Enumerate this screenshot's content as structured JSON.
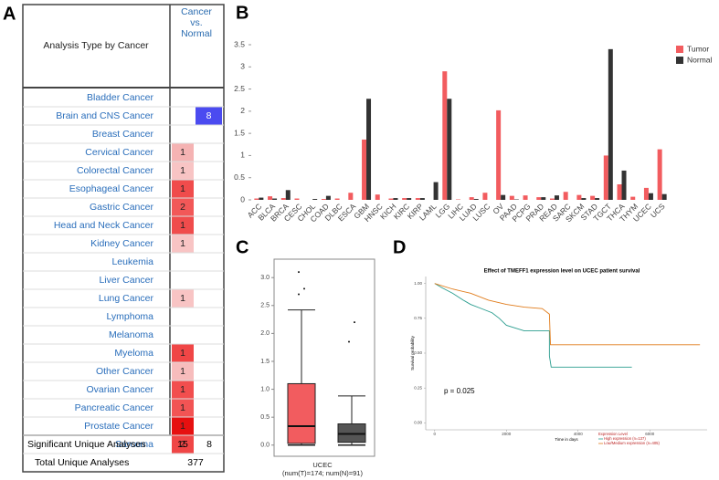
{
  "panel_a": {
    "label": "A",
    "header": {
      "analysis": "Analysis Type by Cancer",
      "comparison": [
        "Cancer",
        "vs.",
        "Normal"
      ]
    },
    "rows": [
      {
        "name": "Bladder Cancer",
        "up": null,
        "down": null
      },
      {
        "name": "Brain and CNS Cancer",
        "up": null,
        "down": {
          "value": 8,
          "color": "#4b4bf0"
        }
      },
      {
        "name": "Breast Cancer",
        "up": null,
        "down": null
      },
      {
        "name": "Cervical Cancer",
        "up": {
          "value": 1,
          "color": "#f5b3b3"
        },
        "down": null
      },
      {
        "name": "Colorectal Cancer",
        "up": {
          "value": 1,
          "color": "#f8c4c4"
        },
        "down": null
      },
      {
        "name": "Esophageal Cancer",
        "up": {
          "value": 1,
          "color": "#f04c4c"
        },
        "down": null
      },
      {
        "name": "Gastric Cancer",
        "up": {
          "value": 2,
          "color": "#f25858"
        },
        "down": null
      },
      {
        "name": "Head and Neck Cancer",
        "up": {
          "value": 1,
          "color": "#f04c4c"
        },
        "down": null
      },
      {
        "name": "Kidney Cancer",
        "up": {
          "value": 1,
          "color": "#f8c4c4"
        },
        "down": null
      },
      {
        "name": "Leukemia",
        "up": null,
        "down": null
      },
      {
        "name": "Liver Cancer",
        "up": null,
        "down": null
      },
      {
        "name": "Lung Cancer",
        "up": {
          "value": 1,
          "color": "#f8c4c4"
        },
        "down": null
      },
      {
        "name": "Lymphoma",
        "up": null,
        "down": null
      },
      {
        "name": "Melanoma",
        "up": null,
        "down": null
      },
      {
        "name": "Myeloma",
        "up": {
          "value": 1,
          "color": "#f04646"
        },
        "down": null
      },
      {
        "name": "Other Cancer",
        "up": {
          "value": 1,
          "color": "#f7bcbc"
        },
        "down": null
      },
      {
        "name": "Ovarian Cancer",
        "up": {
          "value": 1,
          "color": "#f24e4e"
        },
        "down": null
      },
      {
        "name": "Pancreatic Cancer",
        "up": {
          "value": 1,
          "color": "#f25454"
        },
        "down": null
      },
      {
        "name": "Prostate Cancer",
        "up": {
          "value": 1,
          "color": "#e61010"
        },
        "down": null
      },
      {
        "name": "Sarcoma",
        "up": {
          "value": 2,
          "color": "#f04646"
        },
        "down": null
      }
    ],
    "significant": {
      "label": "Significant Unique Analyses",
      "up": 15,
      "down": 8
    },
    "total": {
      "label": "Total Unique Analyses",
      "value": 377
    }
  },
  "chart_data": [
    {
      "type": "bar",
      "label": "B",
      "categories": [
        "ACC",
        "BLCA",
        "BRCA",
        "CESC",
        "CHOL",
        "COAD",
        "DLBC",
        "ESCA",
        "GBM",
        "HNSC",
        "KICH",
        "KIRC",
        "KIRP",
        "LAML",
        "LGG",
        "LIHC",
        "LUAD",
        "LUSC",
        "OV",
        "PAAD",
        "PCPG",
        "PRAD",
        "READ",
        "SARC",
        "SKCM",
        "STAD",
        "TGCT",
        "THCA",
        "THYM",
        "UCEC",
        "UCS"
      ],
      "series": [
        {
          "name": "Tumor",
          "color": "#f25c5f",
          "values": [
            0.03,
            0.08,
            0.04,
            0.03,
            0,
            0.02,
            0.03,
            0.16,
            1.36,
            0.12,
            0.03,
            0.04,
            0.04,
            0,
            2.9,
            0.01,
            0.06,
            0.16,
            2.02,
            0.09,
            0.1,
            0.06,
            0.03,
            0.18,
            0.11,
            0.09,
            1.0,
            0.35,
            0.07,
            0.27,
            1.14
          ]
        },
        {
          "name": "Normal",
          "color": "#333333",
          "values": [
            0.05,
            0.03,
            0.22,
            0,
            0.02,
            0.09,
            0,
            0,
            2.28,
            0,
            0.04,
            0.04,
            0.04,
            0.4,
            2.28,
            0,
            0.02,
            0,
            0.11,
            0.01,
            0,
            0.06,
            0.1,
            0,
            0.04,
            0.04,
            3.4,
            0.66,
            0,
            0.15,
            0.13
          ]
        }
      ],
      "ylim": [
        0,
        3.5
      ],
      "yticks": [
        0,
        0.5,
        1,
        1.5,
        2,
        2.5,
        3,
        3.5
      ],
      "legend": "top-right"
    },
    {
      "type": "box",
      "label": "C",
      "xlabel": [
        "UCEC",
        "(num(T)=174; num(N)=91)"
      ],
      "series": [
        {
          "color": "#f25c5f",
          "min": 0.0,
          "q1": 0.03,
          "median": 0.34,
          "q3": 1.1,
          "max": 2.42,
          "outliers": [
            2.7,
            2.8,
            3.1
          ]
        },
        {
          "color": "#555555",
          "min": 0.0,
          "q1": 0.05,
          "median": 0.2,
          "q3": 0.38,
          "max": 0.88,
          "outliers": [
            1.85,
            2.2
          ]
        }
      ],
      "ylim": [
        -0.2,
        3.33
      ],
      "yticks": [
        {
          "value": 0,
          "label": "0.0"
        },
        0.5,
        {
          "value": 1,
          "label": "1.0"
        },
        1.5,
        {
          "value": 2,
          "label": "2.0"
        },
        2.5,
        {
          "value": 3,
          "label": "3.0"
        }
      ]
    },
    {
      "type": "line",
      "label": "D",
      "title": "Effect of TMEFF1 expression level on UCEC patient survival",
      "xlabel": "Time in days",
      "ylabel": "Survival probability",
      "annotation": "p = 0.025",
      "legend_title": "Expression Level",
      "series": [
        {
          "name": "High expression (n=137)",
          "color": "#2a9d8f",
          "x": [
            0,
            200,
            500,
            800,
            1000,
            1300,
            1600,
            1800,
            2000,
            2500,
            3200,
            3200,
            3250,
            5500
          ],
          "y": [
            1,
            0.97,
            0.93,
            0.88,
            0.85,
            0.82,
            0.79,
            0.75,
            0.7,
            0.66,
            0.66,
            0.48,
            0.4,
            0.4
          ]
        },
        {
          "name": "Low/Medium expression (n=405)",
          "color": "#e07b1a",
          "x": [
            0,
            500,
            1000,
            1500,
            2000,
            2500,
            3000,
            3200,
            3230,
            7400
          ],
          "y": [
            1,
            0.96,
            0.93,
            0.88,
            0.85,
            0.83,
            0.82,
            0.78,
            0.56,
            0.56
          ]
        }
      ],
      "xlim": [
        -250,
        7600
      ],
      "xticks": [
        0,
        2000,
        4000,
        6000
      ],
      "ylim": [
        -0.05,
        1.05
      ],
      "yticks": [
        {
          "value": 0,
          "label": "0.00"
        },
        {
          "value": 0.25,
          "label": "0.25"
        },
        {
          "value": 0.5,
          "label": "0.50"
        },
        {
          "value": 0.75,
          "label": "0.75"
        },
        {
          "value": 1,
          "label": "1.00"
        }
      ]
    }
  ]
}
